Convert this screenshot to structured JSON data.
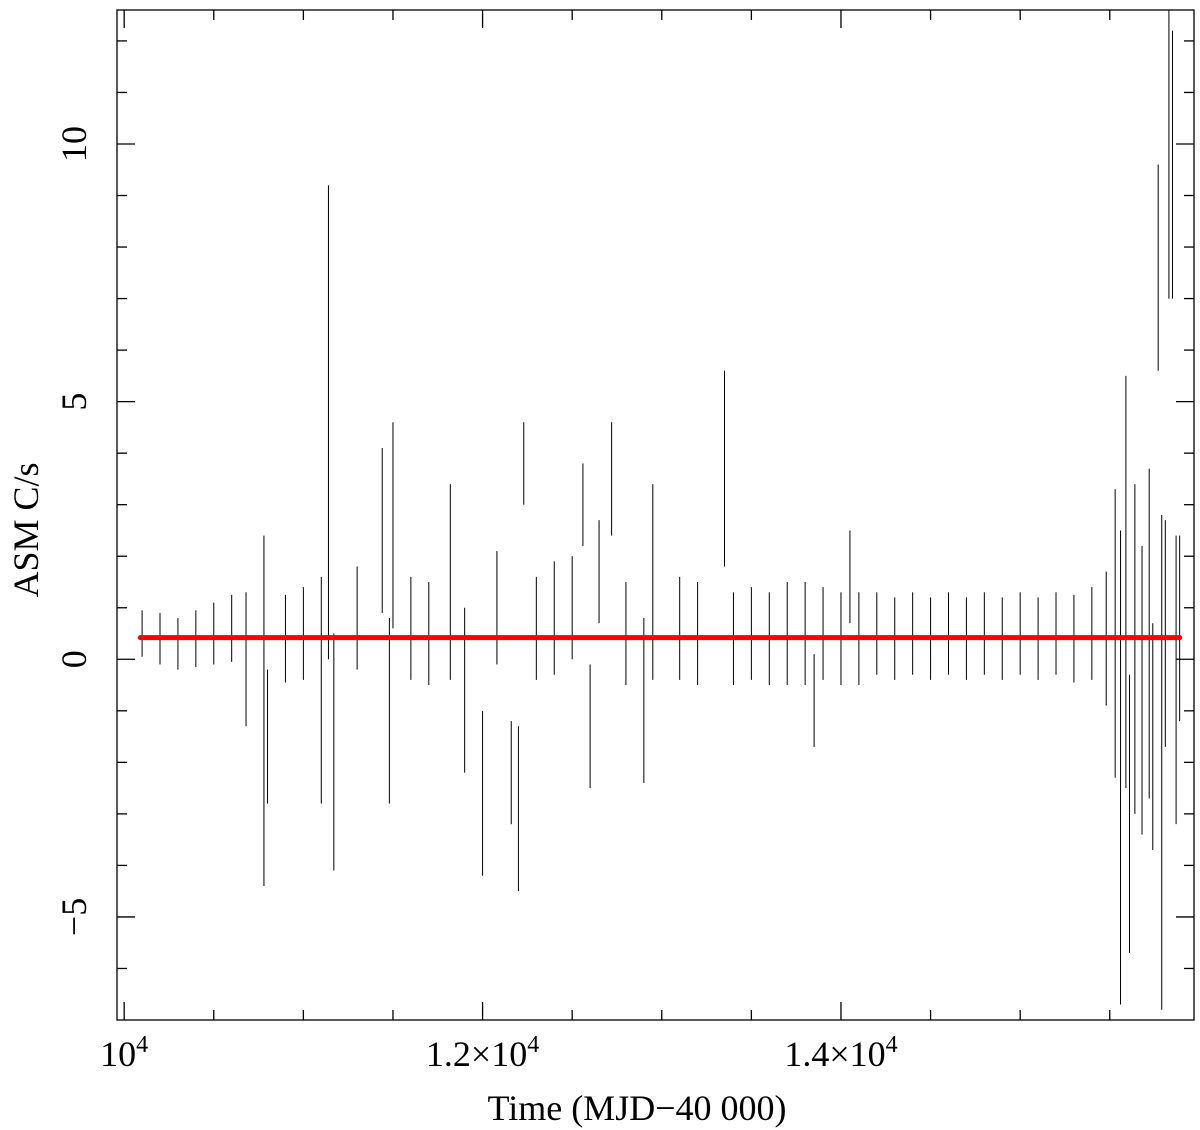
{
  "chart_data": {
    "type": "line",
    "title": "",
    "xlabel": "Time (MJD−40 000)",
    "ylabel": "ASM C/s",
    "xlim": [
      9960,
      15970
    ],
    "ylim": [
      -7.0,
      12.6
    ],
    "x_major_ticks": [
      {
        "value": 10000,
        "label_base": "10",
        "label_exp": "4"
      },
      {
        "value": 12000,
        "label_base": "1.2×10",
        "label_exp": "4"
      },
      {
        "value": 14000,
        "label_base": "1.4×10",
        "label_exp": "4"
      }
    ],
    "y_major_ticks": [
      {
        "value": -5,
        "label": "−5"
      },
      {
        "value": 0,
        "label": "0"
      },
      {
        "value": 5,
        "label": "5"
      },
      {
        "value": 10,
        "label": "10"
      }
    ],
    "grid": false,
    "series": [
      {
        "kind": "error_bars",
        "color": "#000000",
        "points": [
          {
            "x": 10100,
            "y": 0.5,
            "err": 0.45
          },
          {
            "x": 10200,
            "y": 0.4,
            "err": 0.5
          },
          {
            "x": 10300,
            "y": 0.3,
            "err": 0.5
          },
          {
            "x": 10400,
            "y": 0.4,
            "err": 0.55
          },
          {
            "x": 10500,
            "y": 0.5,
            "err": 0.6
          },
          {
            "x": 10600,
            "y": 0.6,
            "err": 0.65
          },
          {
            "x": 10680,
            "y": 0.0,
            "err": 1.3
          },
          {
            "x": 10780,
            "y": -1.0,
            "err": 3.4
          },
          {
            "x": 10800,
            "y": -1.5,
            "err": 1.3
          },
          {
            "x": 10900,
            "y": 0.4,
            "err": 0.85
          },
          {
            "x": 11000,
            "y": 0.5,
            "err": 0.9
          },
          {
            "x": 11100,
            "y": -0.6,
            "err": 2.2
          },
          {
            "x": 11140,
            "y": 4.6,
            "err": 4.6
          },
          {
            "x": 11170,
            "y": -1.8,
            "err": 2.3
          },
          {
            "x": 11300,
            "y": 0.8,
            "err": 1.0
          },
          {
            "x": 11440,
            "y": 2.5,
            "err": 1.6
          },
          {
            "x": 11480,
            "y": -1.0,
            "err": 1.8
          },
          {
            "x": 11500,
            "y": 2.6,
            "err": 2.0
          },
          {
            "x": 11600,
            "y": 0.6,
            "err": 1.0
          },
          {
            "x": 11700,
            "y": 0.5,
            "err": 1.0
          },
          {
            "x": 11820,
            "y": 1.5,
            "err": 1.9
          },
          {
            "x": 11900,
            "y": -0.6,
            "err": 1.6
          },
          {
            "x": 12000,
            "y": -2.6,
            "err": 1.6
          },
          {
            "x": 12080,
            "y": 1.0,
            "err": 1.1
          },
          {
            "x": 12160,
            "y": -2.2,
            "err": 1.0
          },
          {
            "x": 12200,
            "y": -2.9,
            "err": 1.6
          },
          {
            "x": 12230,
            "y": 3.8,
            "err": 0.8
          },
          {
            "x": 12300,
            "y": 0.6,
            "err": 1.0
          },
          {
            "x": 12400,
            "y": 0.8,
            "err": 1.1
          },
          {
            "x": 12500,
            "y": 1.0,
            "err": 1.0
          },
          {
            "x": 12560,
            "y": 3.0,
            "err": 0.8
          },
          {
            "x": 12600,
            "y": -1.3,
            "err": 1.2
          },
          {
            "x": 12650,
            "y": 1.7,
            "err": 1.0
          },
          {
            "x": 12720,
            "y": 3.5,
            "err": 1.1
          },
          {
            "x": 12800,
            "y": 0.5,
            "err": 1.0
          },
          {
            "x": 12900,
            "y": -0.8,
            "err": 1.6
          },
          {
            "x": 12950,
            "y": 1.5,
            "err": 1.9
          },
          {
            "x": 13100,
            "y": 0.6,
            "err": 1.0
          },
          {
            "x": 13200,
            "y": 0.5,
            "err": 1.0
          },
          {
            "x": 13350,
            "y": 3.7,
            "err": 1.9
          },
          {
            "x": 13400,
            "y": 0.4,
            "err": 0.9
          },
          {
            "x": 13500,
            "y": 0.5,
            "err": 0.9
          },
          {
            "x": 13600,
            "y": 0.4,
            "err": 0.9
          },
          {
            "x": 13700,
            "y": 0.5,
            "err": 1.0
          },
          {
            "x": 13800,
            "y": 0.5,
            "err": 1.0
          },
          {
            "x": 13850,
            "y": -0.8,
            "err": 0.9
          },
          {
            "x": 13900,
            "y": 0.5,
            "err": 0.9
          },
          {
            "x": 14000,
            "y": 0.4,
            "err": 0.9
          },
          {
            "x": 14050,
            "y": 1.6,
            "err": 0.9
          },
          {
            "x": 14100,
            "y": 0.4,
            "err": 0.9
          },
          {
            "x": 14200,
            "y": 0.5,
            "err": 0.8
          },
          {
            "x": 14300,
            "y": 0.4,
            "err": 0.8
          },
          {
            "x": 14400,
            "y": 0.5,
            "err": 0.8
          },
          {
            "x": 14500,
            "y": 0.4,
            "err": 0.8
          },
          {
            "x": 14600,
            "y": 0.5,
            "err": 0.8
          },
          {
            "x": 14700,
            "y": 0.4,
            "err": 0.8
          },
          {
            "x": 14800,
            "y": 0.5,
            "err": 0.8
          },
          {
            "x": 14900,
            "y": 0.4,
            "err": 0.8
          },
          {
            "x": 15000,
            "y": 0.5,
            "err": 0.8
          },
          {
            "x": 15100,
            "y": 0.4,
            "err": 0.8
          },
          {
            "x": 15200,
            "y": 0.5,
            "err": 0.8
          },
          {
            "x": 15300,
            "y": 0.4,
            "err": 0.85
          },
          {
            "x": 15400,
            "y": 0.5,
            "err": 0.9
          },
          {
            "x": 15480,
            "y": 0.4,
            "err": 1.3
          },
          {
            "x": 15530,
            "y": 0.5,
            "err": 2.8
          },
          {
            "x": 15560,
            "y": -2.1,
            "err": 4.6
          },
          {
            "x": 15590,
            "y": 1.5,
            "err": 4.0
          },
          {
            "x": 15610,
            "y": -3.0,
            "err": 2.7
          },
          {
            "x": 15640,
            "y": 0.2,
            "err": 3.2
          },
          {
            "x": 15680,
            "y": -0.6,
            "err": 2.8
          },
          {
            "x": 15720,
            "y": 0.5,
            "err": 3.2
          },
          {
            "x": 15740,
            "y": -1.5,
            "err": 2.2
          },
          {
            "x": 15770,
            "y": 7.6,
            "err": 2.0
          },
          {
            "x": 15790,
            "y": -2.0,
            "err": 4.8
          },
          {
            "x": 15810,
            "y": 0.5,
            "err": 2.2
          },
          {
            "x": 15830,
            "y": 9.8,
            "err": 2.8
          },
          {
            "x": 15850,
            "y": 9.6,
            "err": 2.6
          },
          {
            "x": 15870,
            "y": -0.4,
            "err": 2.8
          },
          {
            "x": 15890,
            "y": 0.6,
            "err": 1.8
          }
        ]
      },
      {
        "kind": "constant_fit",
        "color": "#ff0000",
        "x": [
          10090,
          15890
        ],
        "y": [
          0.42,
          0.42
        ]
      }
    ]
  }
}
